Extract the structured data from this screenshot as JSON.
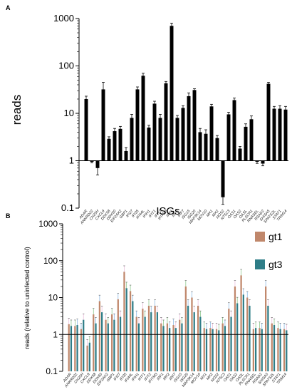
{
  "panel_a_label": "A",
  "panel_b_label": "B",
  "categories": [
    "ADAR",
    "ANKRD22",
    "CH25H",
    "CXCL9",
    "DDX58",
    "DDX60",
    "EIF2AK2",
    "GBP1",
    "IFI27",
    "IFI35",
    "IFI44L",
    "IFIH1",
    "IFIT1",
    "IFIT2",
    "IFITM3",
    "IRF1",
    "IRF2",
    "IRF7",
    "ISG15",
    "ISG20",
    "MAP3K14",
    "MOV10",
    "MX1",
    "MX2",
    "NOS2",
    "NT5C3",
    "OAS1",
    "OAS2",
    "OASL",
    "PLSCR1",
    "RNASEL",
    "RSAD2",
    "SHISA5",
    "SPATS2L",
    "STAT1",
    "TRIM14"
  ],
  "colors": {
    "gt1": "#c0876b",
    "gt3": "#2e7d87",
    "bars_a": "#000000",
    "pink_err": "#e8b8d8",
    "green_err": "#7fc07f",
    "blue_err": "#7fb0e0"
  },
  "chart_data": [
    {
      "type": "bar",
      "panel": "A",
      "title": "",
      "xlabel": "",
      "ylabel": "reads",
      "yscale": "log",
      "ylim": [
        0.1,
        1000
      ],
      "yticks": [
        "0.1",
        "1",
        "10",
        "100",
        "1000"
      ],
      "grid": false,
      "values": [
        20,
        0.95,
        0.7,
        32,
        2.9,
        4.2,
        4.7,
        1.6,
        8,
        32,
        62,
        5,
        16,
        8,
        43,
        700,
        8,
        13,
        23,
        31,
        4,
        3.7,
        14,
        3,
        0.17,
        9.5,
        19,
        1.8,
        5.2,
        7.5,
        0.95,
        0.87,
        42,
        12.5,
        12.5,
        12
      ],
      "err_upper": [
        23,
        1.0,
        0.85,
        45,
        3.2,
        4.8,
        5.3,
        1.9,
        9.5,
        36,
        70,
        5.6,
        18,
        9.5,
        47,
        800,
        9,
        14.5,
        27,
        33,
        4.8,
        4.5,
        15.5,
        3.4,
        0.2,
        10.5,
        21,
        2.0,
        6.0,
        8.8,
        1.0,
        0.95,
        45,
        14,
        14.5,
        14
      ],
      "err_lower": [
        18,
        0.9,
        0.5,
        25,
        2.6,
        3.7,
        4.2,
        1.4,
        7,
        28,
        55,
        4.5,
        14,
        7,
        39,
        620,
        7.2,
        12,
        20,
        29,
        3.4,
        3.0,
        12.5,
        2.6,
        0.12,
        8.5,
        17,
        1.6,
        4.5,
        6.5,
        0.88,
        0.78,
        39,
        11,
        11,
        10.5
      ]
    },
    {
      "type": "bar",
      "panel": "B",
      "title": "ISGs",
      "xlabel": "",
      "ylabel": "reads (relative to uninfected control)",
      "yscale": "log",
      "ylim": [
        0.1,
        1000
      ],
      "yticks": [
        "0.1",
        "1",
        "10",
        "100",
        "1000"
      ],
      "grid": false,
      "reference_line": 1,
      "legend_position": "right",
      "series": [
        {
          "name": "gt1",
          "values": [
            1.9,
            1.7,
            1.4,
            0.5,
            3.5,
            8,
            2.5,
            3.5,
            9,
            50,
            15,
            3,
            5,
            6,
            6,
            2,
            2,
            1.8,
            2.5,
            20,
            10,
            6,
            1.5,
            1.5,
            1.4,
            2,
            5,
            20,
            40,
            10,
            1.4,
            1.5,
            20,
            2,
            1.5,
            1.4
          ]
        },
        {
          "name": "gt3",
          "values": [
            1.7,
            1.8,
            2.5,
            0.6,
            2,
            4,
            2,
            2.5,
            3,
            18,
            8,
            2,
            3,
            4,
            4,
            1.7,
            1.5,
            1.5,
            2,
            6,
            4,
            3,
            1.4,
            1.4,
            1.3,
            1.7,
            3,
            7,
            12,
            6,
            1.5,
            1.4,
            6,
            1.8,
            1.4,
            1.3
          ]
        }
      ]
    }
  ]
}
